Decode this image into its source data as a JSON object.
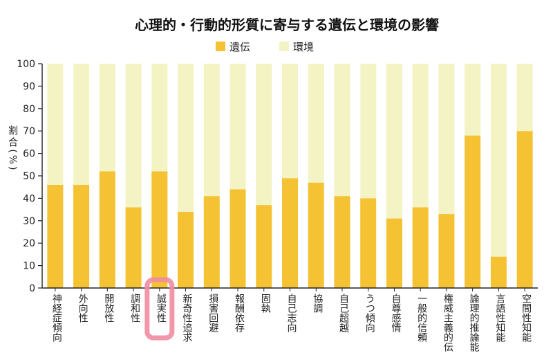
{
  "chart_data": {
    "type": "bar",
    "stacked": true,
    "title": "心理的・行動的形質に寄与する遺伝と環境の影響",
    "ylabel": "割合(%)",
    "xlabel": "",
    "ylim": [
      0,
      100
    ],
    "yticks": [
      0,
      10,
      20,
      30,
      40,
      50,
      60,
      70,
      80,
      90,
      100
    ],
    "legend_position": "top-center",
    "grid": false,
    "categories": [
      "神経症傾向",
      "外向性",
      "開放性",
      "調和性",
      "誠実性",
      "新奇性追求",
      "損害回避",
      "報酬依存",
      "固執",
      "自己志向",
      "協調",
      "自己超越",
      "うつ傾向",
      "自尊感情",
      "一般的信頼",
      "権威主義的伝",
      "論理的推論能",
      "言語性知能",
      "空間性知能"
    ],
    "series": [
      {
        "name": "遺伝",
        "color": "#f4c232",
        "values": [
          46,
          46,
          52,
          36,
          52,
          34,
          41,
          44,
          37,
          49,
          47,
          41,
          40,
          31,
          36,
          33,
          68,
          14,
          70
        ]
      },
      {
        "name": "環境",
        "color": "#f3f3c3",
        "values": [
          54,
          54,
          48,
          64,
          48,
          66,
          59,
          56,
          63,
          51,
          53,
          59,
          60,
          69,
          64,
          67,
          32,
          86,
          30
        ]
      }
    ],
    "highlight": {
      "category": "誠実性",
      "shape": "rounded-rectangle",
      "color": "#ef8ca0"
    }
  }
}
